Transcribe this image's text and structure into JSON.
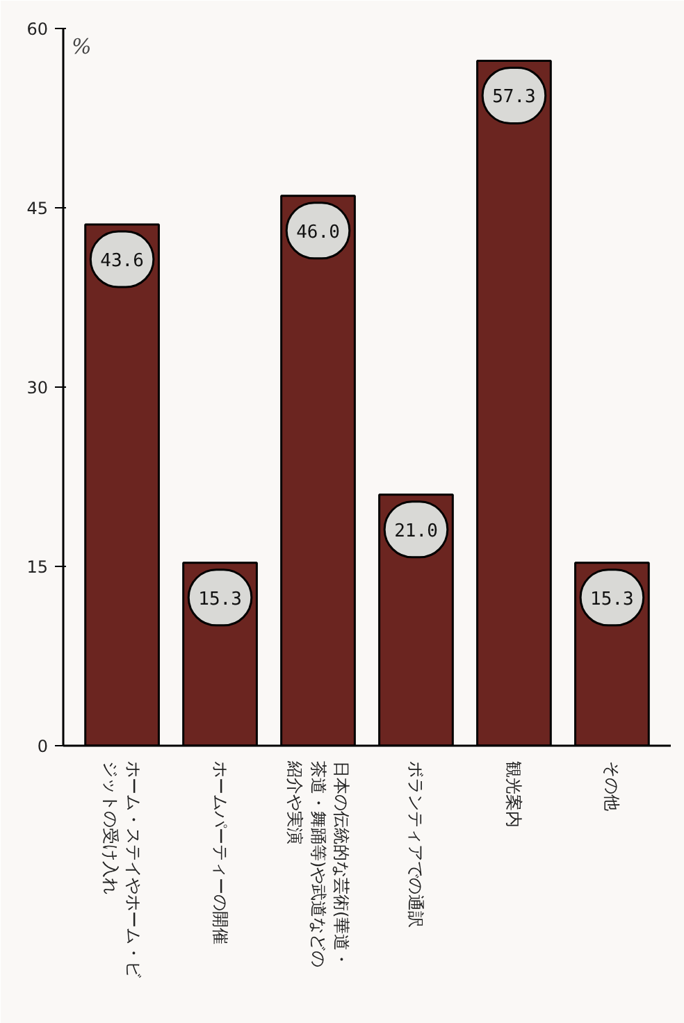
{
  "chart_data": {
    "type": "bar",
    "ylabel": "%",
    "categories": [
      "ホーム・ステイやホーム・ビジットの受け入れ",
      "ホームパーティーの開催",
      "日本の伝統的な芸術(華道・茶道・舞踊等)や武道などの紹介や実演",
      "ボランティアでの通訳",
      "観光案内",
      "その他"
    ],
    "values": [
      43.6,
      15.3,
      46.0,
      21.0,
      57.3,
      15.3
    ],
    "value_labels": [
      "43.6",
      "15.3",
      "46.0",
      "21.0",
      "57.3",
      "15.3"
    ],
    "color": "#6b2520",
    "ylim": [
      0,
      60
    ],
    "yticks": [
      0,
      15,
      30,
      45,
      60
    ],
    "grid": false
  }
}
